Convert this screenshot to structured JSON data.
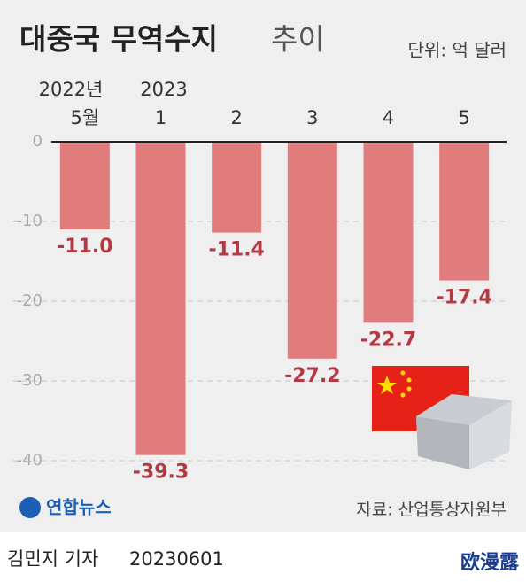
{
  "chart_data": {
    "type": "bar",
    "title": "대중국 무역수지",
    "title_suffix": "추이",
    "unit": "단위: 억 달러",
    "categories": [
      "5월",
      "1",
      "2",
      "3",
      "4",
      "5"
    ],
    "period_labels": [
      "2022년",
      "2023"
    ],
    "values": [
      -11.0,
      -39.3,
      -11.4,
      -27.2,
      -22.7,
      -17.4
    ],
    "value_labels": [
      "-11.0",
      "-39.3",
      "-11.4",
      "-27.2",
      "-22.7",
      "-17.4"
    ],
    "color": "#e07c7c",
    "label_color": "#b23a44",
    "ylim": [
      -43,
      0
    ],
    "yticks": [
      0,
      -10,
      -20,
      -30,
      -40
    ],
    "grid": true,
    "logo": "연합뉴스",
    "source": "자료: 산업통상자원부",
    "reporter": "김민지 기자",
    "date": "20230601",
    "watermark": "欧漫露"
  }
}
